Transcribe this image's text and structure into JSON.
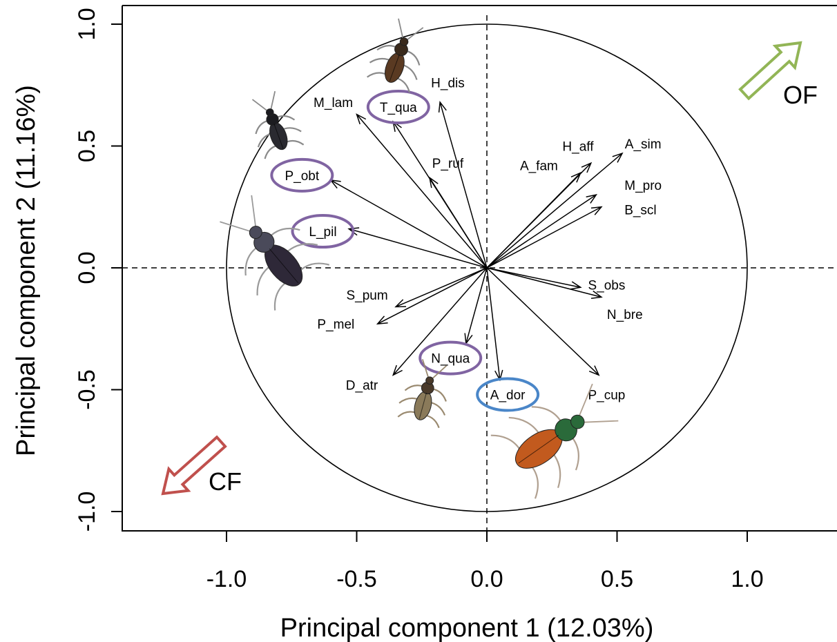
{
  "chart_data": {
    "type": "scatter",
    "subtype": "pca-correlation-circle",
    "title": "",
    "xlabel": "Principal component 1 (12.03%)",
    "ylabel": "Principal component 2 (11.16%)",
    "xlim": [
      -1.4,
      1.35
    ],
    "ylim": [
      -1.08,
      1.08
    ],
    "xticks": [
      -1.0,
      -0.5,
      0.0,
      0.5,
      1.0
    ],
    "xtick_labels": [
      "-1.0",
      "-0.5",
      "0.0",
      "0.5",
      "1.0"
    ],
    "yticks": [
      -1.0,
      -0.5,
      0.0,
      0.5,
      1.0
    ],
    "ytick_labels": [
      "-1.0",
      "-0.5",
      "0.0",
      "0.5",
      "1.0"
    ],
    "unit_circle": true,
    "reference_lines": {
      "x": 0,
      "y": 0,
      "style": "dashed"
    },
    "grid": false,
    "vectors": [
      {
        "name": "H_dis",
        "x": -0.18,
        "y": 0.68,
        "label_x": -0.15,
        "label_y": 0.76
      },
      {
        "name": "T_qua",
        "x": -0.36,
        "y": 0.6,
        "label_x": -0.34,
        "label_y": 0.66,
        "highlight": "purple"
      },
      {
        "name": "M_lam",
        "x": -0.5,
        "y": 0.63,
        "label_x": -0.59,
        "label_y": 0.68
      },
      {
        "name": "P_obt",
        "x": -0.6,
        "y": 0.36,
        "label_x": -0.71,
        "label_y": 0.38,
        "highlight": "purple"
      },
      {
        "name": "P_ruf",
        "x": -0.22,
        "y": 0.37,
        "label_x": -0.15,
        "label_y": 0.43
      },
      {
        "name": "L_pil",
        "x": -0.53,
        "y": 0.16,
        "label_x": -0.63,
        "label_y": 0.15,
        "highlight": "purple"
      },
      {
        "name": "A_fam",
        "x": 0.36,
        "y": 0.39,
        "label_x": 0.2,
        "label_y": 0.42
      },
      {
        "name": "H_aff",
        "x": 0.4,
        "y": 0.43,
        "label_x": 0.35,
        "label_y": 0.5
      },
      {
        "name": "A_sim",
        "x": 0.52,
        "y": 0.47,
        "label_x": 0.6,
        "label_y": 0.51
      },
      {
        "name": "M_pro",
        "x": 0.42,
        "y": 0.3,
        "label_x": 0.6,
        "label_y": 0.34
      },
      {
        "name": "B_scl",
        "x": 0.44,
        "y": 0.25,
        "label_x": 0.59,
        "label_y": 0.24
      },
      {
        "name": "S_obs",
        "x": 0.36,
        "y": -0.08,
        "label_x": 0.46,
        "label_y": -0.07
      },
      {
        "name": "N_bre",
        "x": 0.44,
        "y": -0.12,
        "label_x": 0.53,
        "label_y": -0.19
      },
      {
        "name": "S_pum",
        "x": -0.35,
        "y": -0.16,
        "label_x": -0.46,
        "label_y": -0.11
      },
      {
        "name": "P_mel",
        "x": -0.42,
        "y": -0.23,
        "label_x": -0.58,
        "label_y": -0.23
      },
      {
        "name": "N_qua",
        "x": -0.08,
        "y": -0.31,
        "label_x": -0.14,
        "label_y": -0.37,
        "highlight": "purple"
      },
      {
        "name": "D_atr",
        "x": -0.36,
        "y": -0.44,
        "label_x": -0.48,
        "label_y": -0.48
      },
      {
        "name": "A_dor",
        "x": 0.05,
        "y": -0.46,
        "label_x": 0.08,
        "label_y": -0.52,
        "highlight": "blue"
      },
      {
        "name": "P_cup",
        "x": 0.43,
        "y": -0.44,
        "label_x": 0.46,
        "label_y": -0.52
      }
    ],
    "annotations": [
      {
        "text": "OF",
        "direction": "top-right",
        "color": "#92b556"
      },
      {
        "text": "CF",
        "direction": "bottom-left",
        "color": "#c0504d"
      }
    ],
    "highlight_colors": {
      "purple": "#8064a2",
      "blue": "#4a86c8"
    }
  }
}
